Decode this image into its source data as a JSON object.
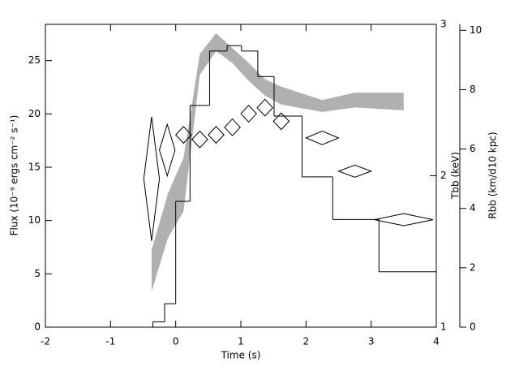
{
  "chart_data": {
    "type": "step",
    "xlabel": "Time (s)",
    "ylabel": "Flux (10⁻⁹ ergs cm⁻² s⁻¹)",
    "y2label": "Tbb (keV)",
    "y3label": "Rbb (km/d10 kpc)",
    "xlim": [
      -2,
      4
    ],
    "xticks": [
      -2,
      -1,
      0,
      1,
      2,
      3,
      4
    ],
    "ylim": [
      0,
      28.4
    ],
    "yticks": [
      0,
      5,
      10,
      15,
      20,
      25
    ],
    "y2lim": [
      1,
      3
    ],
    "y2ticks": [
      1,
      2,
      3
    ],
    "y3lim": [
      0,
      10.2
    ],
    "y3ticks": [
      0,
      2,
      4,
      6,
      8,
      10
    ],
    "series": [
      {
        "type": "step",
        "color": "#000000",
        "bins": [
          -0.35,
          -0.17,
          0,
          0.22,
          0.52,
          0.79,
          1.01,
          1.26,
          1.51,
          1.94,
          2.41,
          3.12,
          4
        ],
        "values": [
          0.5,
          2.2,
          11.8,
          20.8,
          25.9,
          26.4,
          25.9,
          23.5,
          19.8,
          14.1,
          10.1,
          5.2
        ]
      },
      {
        "type": "diamond",
        "axis": "y2",
        "color": "#000000",
        "x": [
          -0.37,
          -0.13,
          0.12,
          0.37,
          0.62,
          0.87,
          1.12,
          1.37,
          1.62,
          2.25,
          2.75,
          3.5
        ],
        "xerr": [
          0.12,
          0.12,
          0.12,
          0.12,
          0.12,
          0.12,
          0.12,
          0.12,
          0.12,
          0.25,
          0.25,
          0.45
        ],
        "values": [
          1.98,
          2.17,
          2.27,
          2.24,
          2.27,
          2.32,
          2.41,
          2.45,
          2.36,
          2.25,
          2.03,
          1.71
        ],
        "errors": [
          0.41,
          0.17,
          0.055,
          0.055,
          0.055,
          0.055,
          0.055,
          0.055,
          0.055,
          0.045,
          0.04,
          0.04
        ]
      },
      {
        "type": "band",
        "axis": "y3",
        "color": "#b0b0b0",
        "x": [
          -0.37,
          -0.12,
          0.12,
          0.37,
          0.62,
          0.87,
          1.12,
          1.37,
          1.62,
          2.25,
          2.75,
          3.5
        ],
        "low": [
          1.2,
          3.0,
          3.9,
          8.5,
          9.3,
          8.9,
          8.3,
          7.8,
          7.5,
          7.25,
          7.4,
          7.3
        ],
        "high": [
          2.6,
          4.5,
          5.7,
          9.2,
          9.9,
          9.4,
          8.9,
          8.35,
          8.1,
          7.65,
          7.9,
          7.9
        ]
      }
    ]
  }
}
